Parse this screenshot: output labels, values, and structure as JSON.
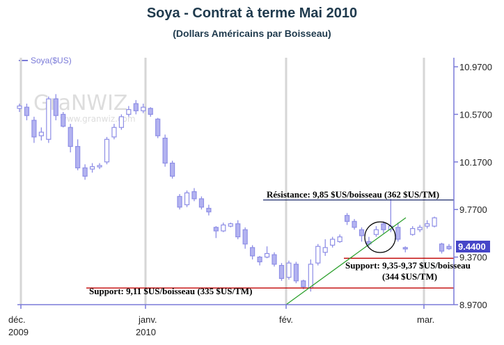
{
  "title": "Soya - Contrat à terme Mai 2010",
  "subtitle": "(Dollars Américains par Boisseau)",
  "watermark": {
    "brand": "GraNWIZ",
    "url": "www.granwiz.com"
  },
  "chart_data": {
    "type": "candlestick",
    "legend": "Soya($US)",
    "y_ticks": [
      "10.9700",
      "10.5700",
      "10.1700",
      "9.7700",
      "9.3700",
      "8.9700"
    ],
    "x_ticks": [
      {
        "label": "déc.",
        "sub": "2009"
      },
      {
        "label": "janv.",
        "sub": "2010"
      },
      {
        "label": "fév.",
        "sub": ""
      },
      {
        "label": "mar.",
        "sub": ""
      }
    ],
    "ylim": [
      8.97,
      10.97
    ],
    "last_price": "9.4400",
    "annotations": {
      "resistance": "Résistance: 9,85 $US/boisseau (362 $US/TM)",
      "support_main": "Support: 9,11 $US/boisseau (335 $US/TM)",
      "support_recent_1": "Support: 9,35-9,37 $US/boisseau",
      "support_recent_2": "(344 $US/TM)"
    },
    "levels": {
      "resistance": 9.85,
      "support_main": 9.11,
      "support_recent": 9.36
    },
    "candles": [
      [
        10.62,
        10.66,
        10.59,
        10.64
      ],
      [
        10.63,
        10.66,
        10.52,
        10.56
      ],
      [
        10.52,
        10.55,
        10.33,
        10.38
      ],
      [
        10.39,
        10.46,
        10.35,
        10.42
      ],
      [
        10.36,
        10.72,
        10.33,
        10.7
      ],
      [
        10.7,
        10.74,
        10.52,
        10.56
      ],
      [
        10.57,
        10.59,
        10.46,
        10.47
      ],
      [
        10.46,
        10.49,
        10.25,
        10.3
      ],
      [
        10.3,
        10.36,
        10.1,
        10.12
      ],
      [
        10.12,
        10.15,
        10.02,
        10.05
      ],
      [
        10.11,
        10.16,
        10.08,
        10.13
      ],
      [
        10.13,
        10.16,
        10.11,
        10.14
      ],
      [
        10.17,
        10.38,
        10.15,
        10.36
      ],
      [
        10.38,
        10.49,
        10.36,
        10.46
      ],
      [
        10.46,
        10.57,
        10.44,
        10.55
      ],
      [
        10.57,
        10.64,
        10.55,
        10.61
      ],
      [
        10.66,
        10.69,
        10.57,
        10.6
      ],
      [
        10.6,
        10.66,
        10.58,
        10.63
      ],
      [
        10.62,
        10.63,
        10.55,
        10.57
      ],
      [
        10.53,
        10.54,
        10.37,
        10.39
      ],
      [
        10.37,
        10.4,
        10.13,
        10.16
      ],
      [
        10.16,
        10.18,
        10.03,
        10.05
      ],
      [
        9.88,
        9.9,
        9.77,
        9.79
      ],
      [
        9.81,
        9.93,
        9.79,
        9.91
      ],
      [
        9.92,
        9.95,
        9.84,
        9.86
      ],
      [
        9.86,
        9.88,
        9.77,
        9.79
      ],
      [
        9.78,
        9.81,
        9.72,
        9.75
      ],
      [
        9.62,
        9.63,
        9.53,
        9.59
      ],
      [
        9.59,
        9.66,
        9.58,
        9.64
      ],
      [
        9.63,
        9.66,
        9.62,
        9.65
      ],
      [
        9.65,
        9.68,
        9.52,
        9.54
      ],
      [
        9.6,
        9.62,
        9.44,
        9.48
      ],
      [
        9.45,
        9.47,
        9.35,
        9.38
      ],
      [
        9.37,
        9.38,
        9.3,
        9.33
      ],
      [
        9.37,
        9.46,
        9.36,
        9.4
      ],
      [
        9.39,
        9.41,
        9.29,
        9.31
      ],
      [
        9.3,
        9.32,
        9.17,
        9.19
      ],
      [
        9.2,
        9.34,
        9.18,
        9.32
      ],
      [
        9.31,
        9.33,
        9.15,
        9.17
      ],
      [
        9.17,
        9.18,
        9.1,
        9.12
      ],
      [
        9.11,
        9.35,
        9.08,
        9.31
      ],
      [
        9.32,
        9.48,
        9.3,
        9.46
      ],
      [
        9.41,
        9.52,
        9.38,
        9.45
      ],
      [
        9.47,
        9.54,
        9.45,
        9.52
      ],
      [
        9.5,
        9.56,
        9.49,
        9.54
      ],
      [
        9.72,
        9.74,
        9.64,
        9.67
      ],
      [
        9.67,
        9.69,
        9.6,
        9.62
      ],
      [
        9.6,
        9.62,
        9.5,
        9.55
      ],
      [
        9.5,
        9.54,
        9.46,
        9.48
      ],
      [
        9.56,
        9.63,
        9.54,
        9.6
      ],
      [
        9.65,
        9.67,
        9.57,
        9.6
      ],
      [
        9.6,
        9.86,
        9.58,
        9.63
      ],
      [
        9.62,
        9.66,
        9.5,
        9.52
      ],
      [
        9.45,
        9.46,
        9.41,
        9.44
      ],
      [
        9.56,
        9.63,
        9.55,
        9.61
      ],
      [
        9.6,
        9.64,
        9.58,
        9.62
      ],
      [
        9.63,
        9.68,
        9.61,
        9.65
      ],
      [
        9.63,
        9.71,
        9.62,
        9.7
      ],
      [
        9.48,
        9.49,
        9.4,
        9.42
      ],
      [
        9.46,
        9.48,
        9.43,
        9.44
      ]
    ]
  }
}
